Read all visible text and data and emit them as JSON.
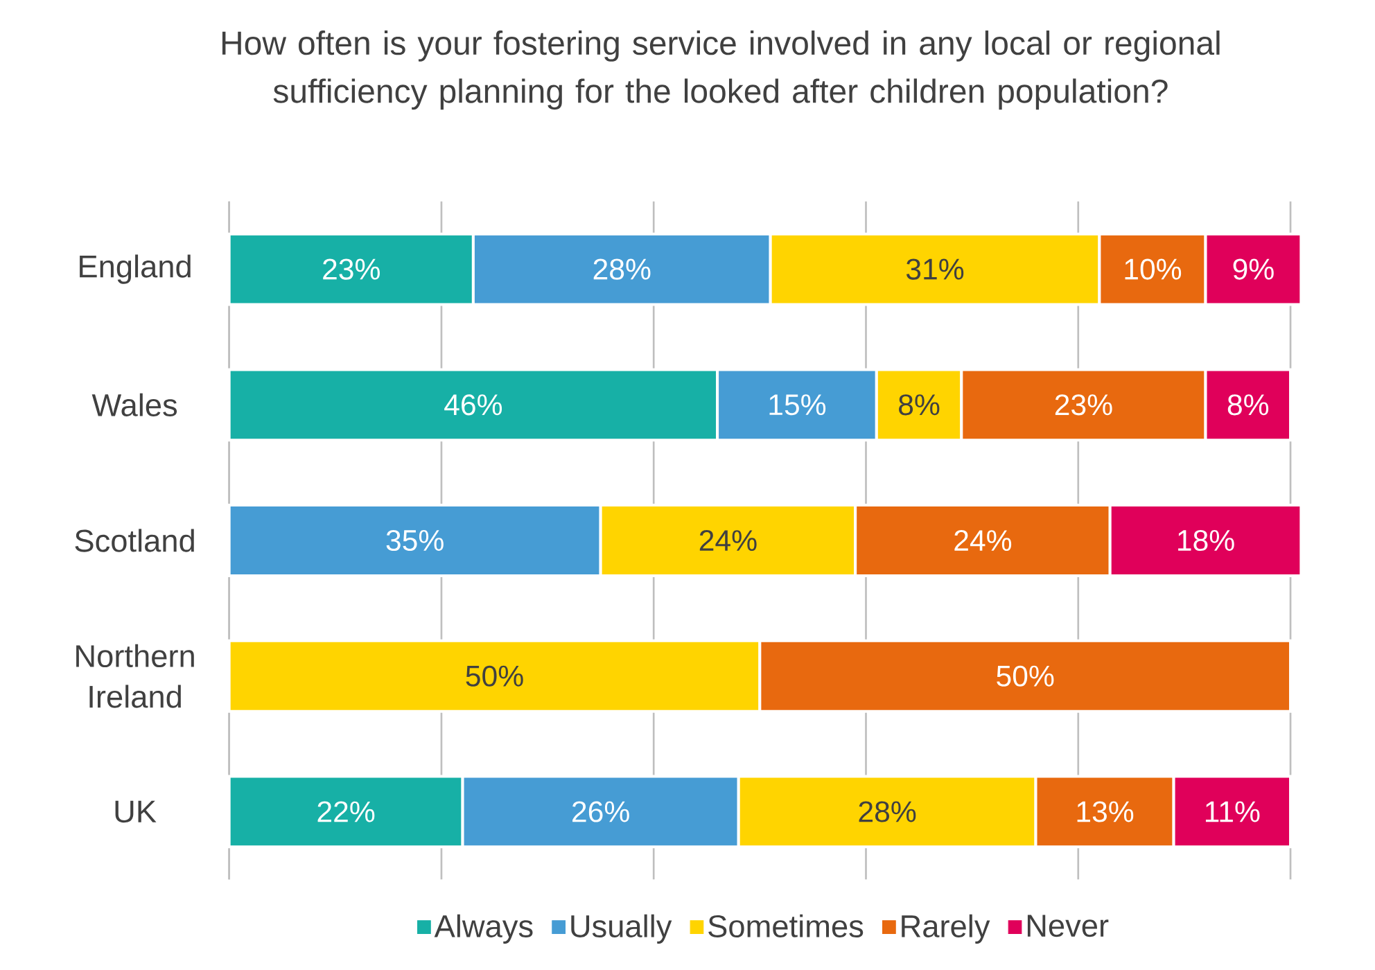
{
  "chart_data": {
    "type": "bar",
    "orientation": "horizontal",
    "stacked": true,
    "title": "How often is your fostering service involved in any local or regional sufficiency planning for the looked after children population?",
    "categories": [
      "England",
      "Wales",
      "Scotland",
      "Northern Ireland",
      "UK"
    ],
    "series": [
      {
        "name": "Always",
        "color": "#17b0a6",
        "values": [
          23,
          46,
          null,
          null,
          22
        ],
        "value_labels": [
          "23%",
          "46%",
          null,
          null,
          "22%"
        ]
      },
      {
        "name": "Usually",
        "color": "#469cd4",
        "values": [
          28,
          15,
          35,
          null,
          26
        ],
        "value_labels": [
          "28%",
          "15%",
          "35%",
          null,
          "26%"
        ]
      },
      {
        "name": "Sometimes",
        "color": "#ffd400",
        "values": [
          31,
          8,
          24,
          50,
          28
        ],
        "value_labels": [
          "31%",
          "8%",
          "24%",
          "50%",
          "28%"
        ]
      },
      {
        "name": "Rarely",
        "color": "#e8690f",
        "values": [
          10,
          23,
          24,
          50,
          13
        ],
        "value_labels": [
          "10%",
          "23%",
          "24%",
          "50%",
          "13%"
        ]
      },
      {
        "name": "Never",
        "color": "#e0005a",
        "values": [
          9,
          8,
          18,
          null,
          11
        ],
        "value_labels": [
          "9%",
          "8%",
          "18%",
          null,
          "11%"
        ]
      }
    ],
    "xlim": [
      0,
      101
    ],
    "xticks": [
      {
        "value": 0,
        "label": null
      },
      {
        "value": 20,
        "label": null
      },
      {
        "value": 40,
        "label": null
      },
      {
        "value": 60,
        "label": null
      },
      {
        "value": 80,
        "label": null
      },
      {
        "value": 100,
        "label": null
      }
    ],
    "grid": "x",
    "tick_labels": "y",
    "legend": "bottom"
  }
}
